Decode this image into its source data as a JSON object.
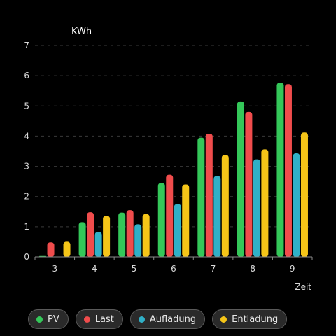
{
  "chart_data": {
    "type": "bar",
    "ylabel": "KWh",
    "xlabel": "Zeit",
    "ylim": [
      0,
      7
    ],
    "yticks": [
      0,
      1,
      2,
      3,
      4,
      5,
      6,
      7
    ],
    "grid": true,
    "legend_position": "bottom",
    "categories": [
      "3",
      "4",
      "5",
      "6",
      "7",
      "8",
      "9"
    ],
    "series": [
      {
        "name": "PV",
        "color": "#34c759",
        "values": [
          0.03,
          1.15,
          1.47,
          2.45,
          3.95,
          5.15,
          5.77
        ]
      },
      {
        "name": "Last",
        "color": "#f04c4c",
        "values": [
          0.48,
          1.48,
          1.55,
          2.72,
          4.08,
          4.8,
          5.72
        ]
      },
      {
        "name": "Aufladung",
        "color": "#30b0c7",
        "values": [
          0,
          0.83,
          1.08,
          1.75,
          2.68,
          3.23,
          3.43
        ]
      },
      {
        "name": "Entladung",
        "color": "#f5c518",
        "values": [
          0.5,
          1.36,
          1.42,
          2.4,
          3.38,
          3.56,
          4.12
        ]
      }
    ]
  }
}
